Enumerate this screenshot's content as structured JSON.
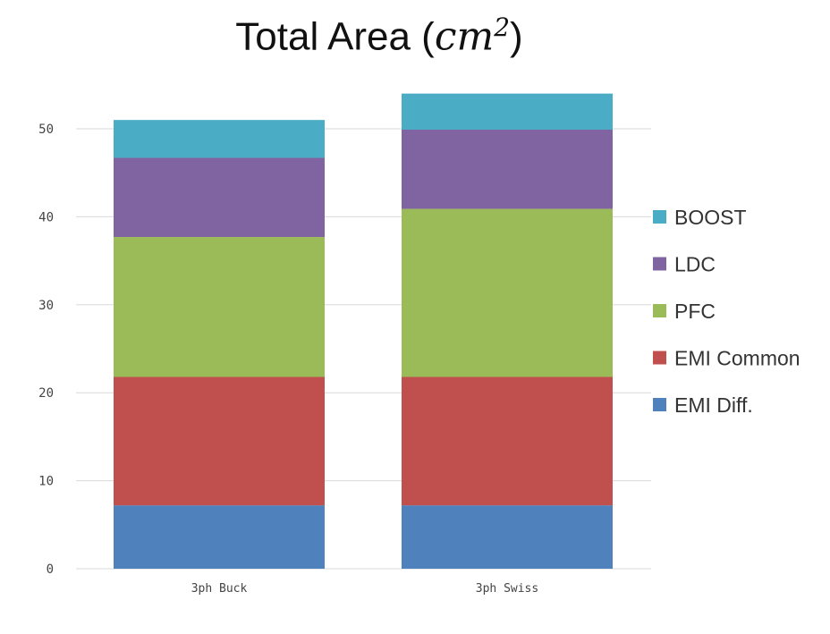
{
  "chart_data": {
    "type": "bar",
    "stacked": true,
    "title": "Total Area (cm²)",
    "title_parts": {
      "prefix": "Total Area (",
      "unit": "cm",
      "exponent": "2",
      "suffix": ")"
    },
    "xlabel": "",
    "ylabel": "",
    "ylim": [
      0,
      54
    ],
    "yticks": [
      "0",
      "10",
      "20",
      "30",
      "40",
      "50"
    ],
    "ytick_values": [
      0,
      10,
      20,
      30,
      40,
      50
    ],
    "grid": true,
    "legend_position": "right",
    "categories": [
      "3ph Buck",
      "3ph Swiss"
    ],
    "series": [
      {
        "name": "EMI Diff.",
        "color": "#4F81BD",
        "values": [
          7.2,
          7.2
        ]
      },
      {
        "name": "EMI Common",
        "color": "#C0504D",
        "values": [
          14.6,
          14.6
        ]
      },
      {
        "name": "PFC",
        "color": "#9BBB59",
        "values": [
          15.9,
          19.1
        ]
      },
      {
        "name": "LDC",
        "color": "#8064A2",
        "values": [
          9.0,
          9.0
        ]
      },
      {
        "name": "BOOST",
        "color": "#4BACC6",
        "values": [
          4.3,
          4.1
        ]
      }
    ]
  }
}
